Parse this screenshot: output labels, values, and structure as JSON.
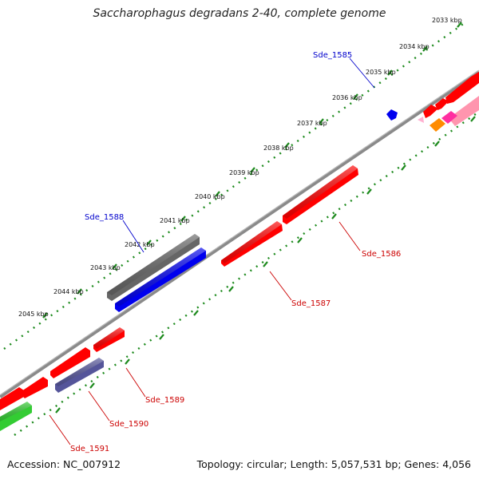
{
  "title": "Saccharophagus degradans 2-40, complete genome",
  "footer": {
    "accession": "Accession: NC_007912",
    "summary": "Topology: circular; Length: 5,057,531 bp; Genes: 4,056"
  },
  "colors": {
    "backbone": "#8a8a8a",
    "tick_dots": "#1d8a1d",
    "forward_gene": "#ff0000",
    "reverse_gene": "#ff0000",
    "gray_gene": "#666666",
    "blue_gene": "#0000ee",
    "slate_gene": "#55559a",
    "green_gene": "#33cc33",
    "orange_gene": "#ff8c00",
    "magenta_gene": "#ff2ea0",
    "pink_gene": "#ff7a9a",
    "blue_label": "#0000cc",
    "red_label": "#cc0000"
  },
  "scale_ticks": [
    "2033 kbp",
    "2034 kbp",
    "2035 kbp",
    "2036 kbp",
    "2037 kbp",
    "2038 kbp",
    "2039 kbp",
    "2040 kbp",
    "2041 kbp",
    "2042 kbp",
    "2043 kbp",
    "2044 kbp",
    "2045 kbp"
  ],
  "gene_labels": {
    "sde_1585": "Sde_1585",
    "sde_1586": "Sde_1586",
    "sde_1587": "Sde_1587",
    "sde_1588": "Sde_1588",
    "sde_1589": "Sde_1589",
    "sde_1590": "Sde_1590",
    "sde_1591": "Sde_1591"
  }
}
